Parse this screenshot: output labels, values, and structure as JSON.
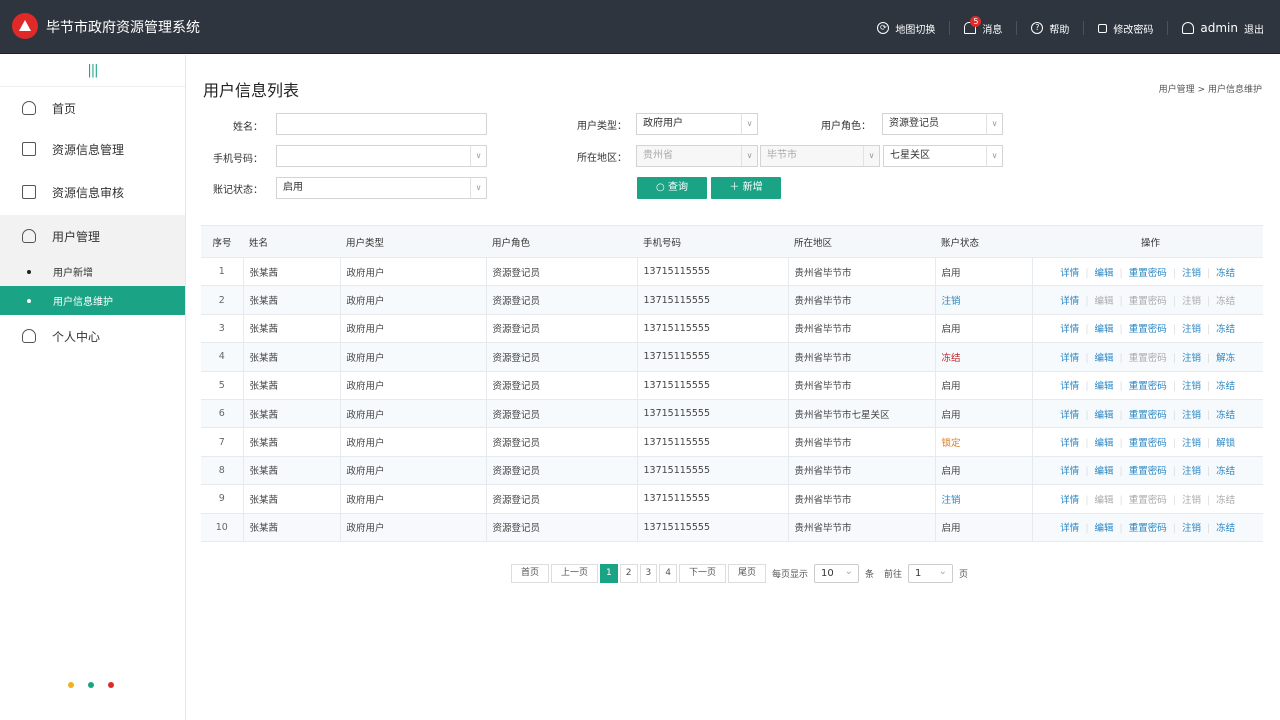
{
  "app": {
    "title": "毕节市政府资源管理系统"
  },
  "topnav": {
    "map_switch": "地图切换",
    "messages": "消息",
    "message_count": "5",
    "help": "帮助",
    "change_password": "修改密码",
    "username": "admin",
    "logout": "退出"
  },
  "sidebar": {
    "collapse_icon": "|||",
    "items": [
      {
        "label": "首页",
        "icon": "home-icon"
      },
      {
        "label": "资源信息管理",
        "icon": "edit-doc-icon"
      },
      {
        "label": "资源信息审核",
        "icon": "check-doc-icon"
      },
      {
        "label": "用户管理",
        "icon": "user-manage-icon"
      }
    ],
    "sub_items": [
      {
        "label": "用户新增",
        "active": false
      },
      {
        "label": "用户信息维护",
        "active": true
      }
    ],
    "personal": {
      "label": "个人中心",
      "icon": "user-icon"
    },
    "dot_colors": [
      "#f2b01e",
      "#1aa485",
      "#e02a2a"
    ]
  },
  "page": {
    "title": "用户信息列表",
    "breadcrumb": [
      "用户管理",
      "用户信息维护"
    ],
    "breadcrumb_sep": ">"
  },
  "filters": {
    "name_label": "姓名：",
    "name_value": "",
    "phone_label": "手机号码：",
    "phone_value": "",
    "status_label": "账记状态：",
    "status_value": "启用",
    "user_type_label": "用户类型：",
    "user_type_value": "政府用户",
    "role_label": "用户角色：",
    "role_value": "资源登记员",
    "region_label": "所在地区：",
    "province_value": "贵州省",
    "city_value": "毕节市",
    "district_value": "七星关区",
    "search_label": "查询",
    "add_label": "新增"
  },
  "table": {
    "headers": [
      "序号",
      "姓名",
      "用户类型",
      "用户角色",
      "手机号码",
      "所在地区",
      "账户状态",
      "操作"
    ],
    "rows": [
      {
        "no": "1",
        "name": "张某茜",
        "type": "政府用户",
        "role": "资源登记员",
        "phone": "13715115555",
        "region": "贵州省毕节市",
        "status": "启用",
        "status_color": "#444",
        "actions": [
          {
            "label": "详情",
            "disabled": false
          },
          {
            "label": "编辑",
            "disabled": false
          },
          {
            "label": "重置密码",
            "disabled": false
          },
          {
            "label": "注销",
            "disabled": false
          },
          {
            "label": "冻结",
            "disabled": false
          }
        ]
      },
      {
        "no": "2",
        "name": "张某茜",
        "type": "政府用户",
        "role": "资源登记员",
        "phone": "13715115555",
        "region": "贵州省毕节市",
        "status": "注销",
        "status_color": "#2a86c4",
        "actions": [
          {
            "label": "详情",
            "disabled": false
          },
          {
            "label": "编辑",
            "disabled": true
          },
          {
            "label": "重置密码",
            "disabled": true
          },
          {
            "label": "注销",
            "disabled": true
          },
          {
            "label": "冻结",
            "disabled": true
          }
        ]
      },
      {
        "no": "3",
        "name": "张某茜",
        "type": "政府用户",
        "role": "资源登记员",
        "phone": "13715115555",
        "region": "贵州省毕节市",
        "status": "启用",
        "status_color": "#444",
        "actions": [
          {
            "label": "详情",
            "disabled": false
          },
          {
            "label": "编辑",
            "disabled": false
          },
          {
            "label": "重置密码",
            "disabled": false
          },
          {
            "label": "注销",
            "disabled": false
          },
          {
            "label": "冻结",
            "disabled": false
          }
        ]
      },
      {
        "no": "4",
        "name": "张某茜",
        "type": "政府用户",
        "role": "资源登记员",
        "phone": "13715115555",
        "region": "贵州省毕节市",
        "status": "冻结",
        "status_color": "#c0272d",
        "actions": [
          {
            "label": "详情",
            "disabled": false
          },
          {
            "label": "编辑",
            "disabled": false
          },
          {
            "label": "重置密码",
            "disabled": true
          },
          {
            "label": "注销",
            "disabled": false
          },
          {
            "label": "解冻",
            "disabled": false
          }
        ]
      },
      {
        "no": "5",
        "name": "张某茜",
        "type": "政府用户",
        "role": "资源登记员",
        "phone": "13715115555",
        "region": "贵州省毕节市",
        "status": "启用",
        "status_color": "#444",
        "actions": [
          {
            "label": "详情",
            "disabled": false
          },
          {
            "label": "编辑",
            "disabled": false
          },
          {
            "label": "重置密码",
            "disabled": false
          },
          {
            "label": "注销",
            "disabled": false
          },
          {
            "label": "冻结",
            "disabled": false
          }
        ]
      },
      {
        "no": "6",
        "name": "张某茜",
        "type": "政府用户",
        "role": "资源登记员",
        "phone": "13715115555",
        "region": "贵州省毕节市七星关区",
        "status": "启用",
        "status_color": "#444",
        "actions": [
          {
            "label": "详情",
            "disabled": false
          },
          {
            "label": "编辑",
            "disabled": false
          },
          {
            "label": "重置密码",
            "disabled": false
          },
          {
            "label": "注销",
            "disabled": false
          },
          {
            "label": "冻结",
            "disabled": false
          }
        ]
      },
      {
        "no": "7",
        "name": "张某茜",
        "type": "政府用户",
        "role": "资源登记员",
        "phone": "13715115555",
        "region": "贵州省毕节市",
        "status": "锁定",
        "status_color": "#e07b1a",
        "actions": [
          {
            "label": "详情",
            "disabled": false
          },
          {
            "label": "编辑",
            "disabled": false
          },
          {
            "label": "重置密码",
            "disabled": false
          },
          {
            "label": "注销",
            "disabled": false
          },
          {
            "label": "解锁",
            "disabled": false
          }
        ]
      },
      {
        "no": "8",
        "name": "张某茜",
        "type": "政府用户",
        "role": "资源登记员",
        "phone": "13715115555",
        "region": "贵州省毕节市",
        "status": "启用",
        "status_color": "#444",
        "actions": [
          {
            "label": "详情",
            "disabled": false
          },
          {
            "label": "编辑",
            "disabled": false
          },
          {
            "label": "重置密码",
            "disabled": false
          },
          {
            "label": "注销",
            "disabled": false
          },
          {
            "label": "冻结",
            "disabled": false
          }
        ]
      },
      {
        "no": "9",
        "name": "张某茜",
        "type": "政府用户",
        "role": "资源登记员",
        "phone": "13715115555",
        "region": "贵州省毕节市",
        "status": "注销",
        "status_color": "#2a86c4",
        "actions": [
          {
            "label": "详情",
            "disabled": false
          },
          {
            "label": "编辑",
            "disabled": true
          },
          {
            "label": "重置密码",
            "disabled": true
          },
          {
            "label": "注销",
            "disabled": true
          },
          {
            "label": "冻结",
            "disabled": true
          }
        ]
      },
      {
        "no": "10",
        "name": "张某茜",
        "type": "政府用户",
        "role": "资源登记员",
        "phone": "13715115555",
        "region": "贵州省毕节市",
        "status": "启用",
        "status_color": "#444",
        "actions": [
          {
            "label": "详情",
            "disabled": false
          },
          {
            "label": "编辑",
            "disabled": false
          },
          {
            "label": "重置密码",
            "disabled": false
          },
          {
            "label": "注销",
            "disabled": false
          },
          {
            "label": "冻结",
            "disabled": false
          }
        ]
      }
    ]
  },
  "pagination": {
    "first": "首页",
    "prev": "上一页",
    "pages": [
      "1",
      "2",
      "3",
      "4"
    ],
    "current": "1",
    "next": "下一页",
    "last": "尾页",
    "per_page_label": "每页显示",
    "per_page_value": "10",
    "unit": "条",
    "goto_label": "前往",
    "goto_value": "1",
    "page_unit": "页"
  }
}
